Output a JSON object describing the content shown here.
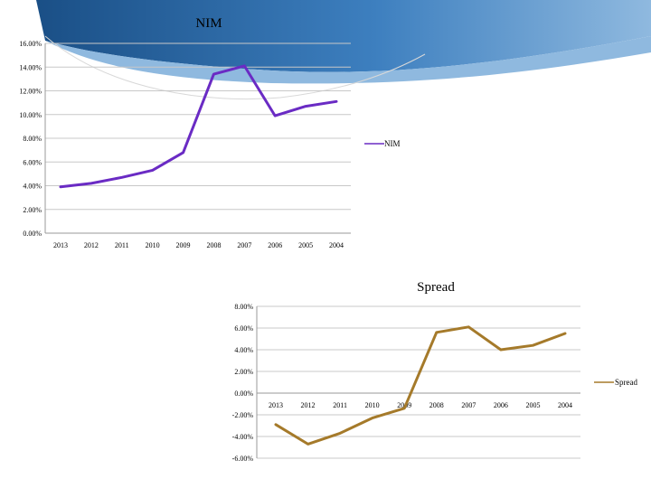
{
  "colors": {
    "band_dark": "#1a4f86",
    "band_mid": "#3d7fbf",
    "band_light": "#8fb9df"
  },
  "chart_data": [
    {
      "type": "line",
      "title": "NIM",
      "x": [
        "2013",
        "2012",
        "2011",
        "2010",
        "2009",
        "2008",
        "2007",
        "2006",
        "2005",
        "2004"
      ],
      "series": [
        {
          "name": "NIM",
          "color": "#6a2bc4",
          "values": [
            3.9,
            4.2,
            4.7,
            5.3,
            6.8,
            13.4,
            14.1,
            9.9,
            10.7,
            11.1
          ]
        }
      ],
      "y_ticks": [
        "16.00%",
        "14.00%",
        "12.00%",
        "10.00%",
        "8.00%",
        "6.00%",
        "4.00%",
        "2.00%",
        "0.00%"
      ],
      "ylim": [
        0,
        16
      ],
      "grid": true,
      "legend": "right"
    },
    {
      "type": "line",
      "title": "Spread",
      "x": [
        "2013",
        "2012",
        "2011",
        "2010",
        "2009",
        "2008",
        "2007",
        "2006",
        "2005",
        "2004"
      ],
      "series": [
        {
          "name": "Spread",
          "color": "#a57a2a",
          "values": [
            -2.9,
            -4.7,
            -3.7,
            -2.3,
            -1.4,
            5.6,
            6.1,
            4.0,
            4.4,
            5.5
          ]
        }
      ],
      "y_ticks": [
        "8.00%",
        "6.00%",
        "4.00%",
        "2.00%",
        "0.00%",
        "-2.00%",
        "-4.00%",
        "-6.00%"
      ],
      "ylim": [
        -6,
        8
      ],
      "grid": true,
      "legend": "right"
    }
  ]
}
